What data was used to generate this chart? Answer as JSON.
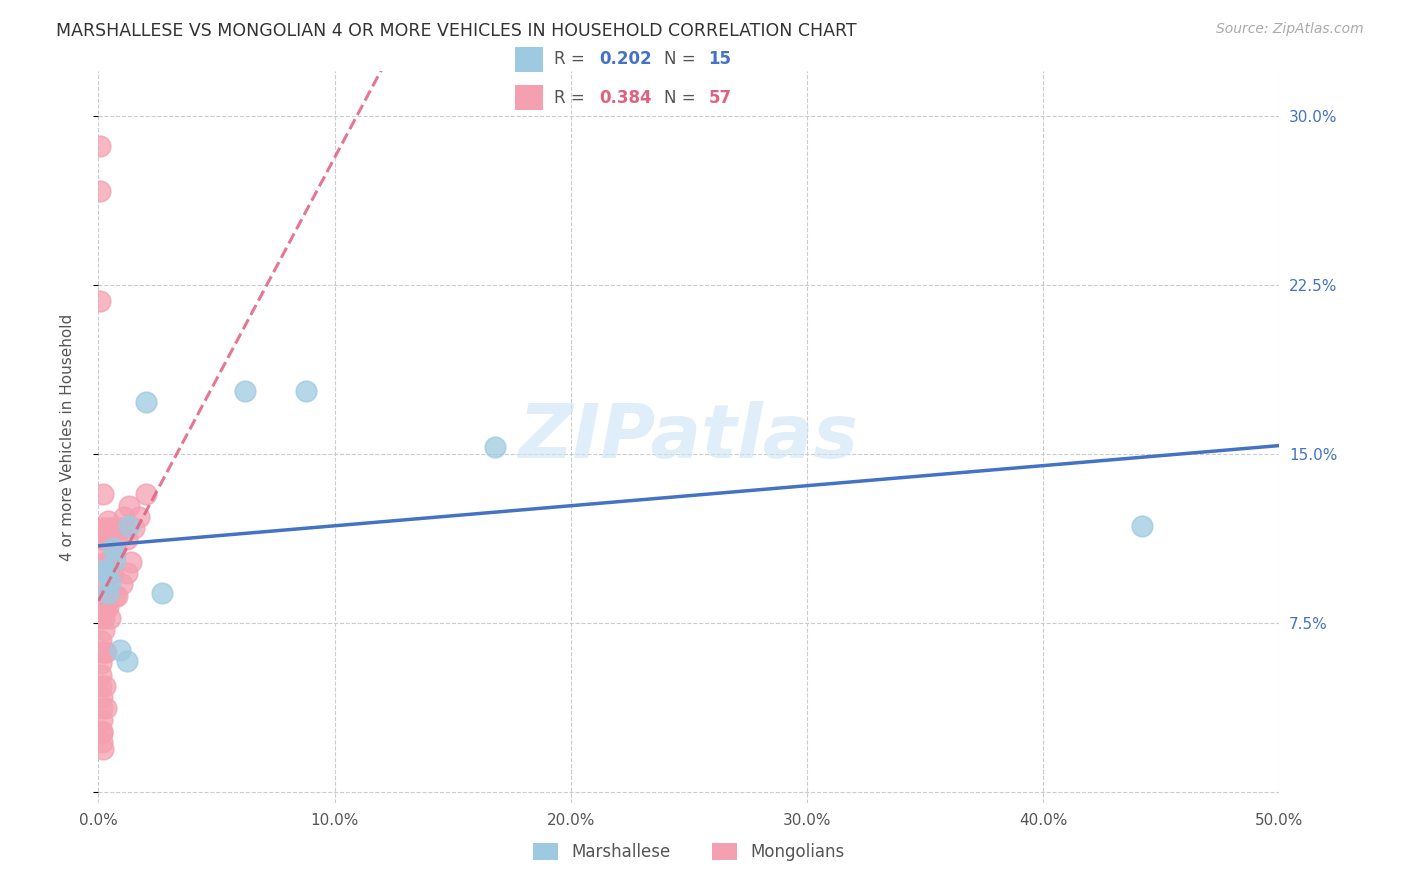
{
  "title": "MARSHALLESE VS MONGOLIAN 4 OR MORE VEHICLES IN HOUSEHOLD CORRELATION CHART",
  "source": "Source: ZipAtlas.com",
  "ylabel": "4 or more Vehicles in Household",
  "xlim": [
    0.0,
    0.5
  ],
  "ylim": [
    -0.005,
    0.32
  ],
  "xticks": [
    0.0,
    0.1,
    0.2,
    0.3,
    0.4,
    0.5
  ],
  "xticklabels": [
    "0.0%",
    "10.0%",
    "20.0%",
    "30.0%",
    "40.0%",
    "50.0%"
  ],
  "yticks": [
    0.0,
    0.075,
    0.15,
    0.225,
    0.3
  ],
  "yticklabels_right": [
    "",
    "7.5%",
    "15.0%",
    "22.5%",
    "30.0%"
  ],
  "grid_color": "#cccccc",
  "marshallese_color": "#9ecae1",
  "mongolian_color": "#f4a0b0",
  "marshallese_R": 0.202,
  "marshallese_N": 15,
  "mongolian_R": 0.384,
  "mongolian_N": 57,
  "marshallese_line_color": "#4472c4",
  "mongolian_line_color": "#e06080",
  "marshallese_x": [
    0.002,
    0.003,
    0.004,
    0.005,
    0.006,
    0.007,
    0.009,
    0.012,
    0.013,
    0.02,
    0.027,
    0.062,
    0.088,
    0.168,
    0.442
  ],
  "marshallese_y": [
    0.098,
    0.098,
    0.088,
    0.093,
    0.108,
    0.103,
    0.063,
    0.058,
    0.118,
    0.173,
    0.088,
    0.178,
    0.178,
    0.153,
    0.118
  ],
  "mongolian_x": [
    0.0008,
    0.0008,
    0.0008,
    0.0009,
    0.001,
    0.001,
    0.001,
    0.001,
    0.001,
    0.001,
    0.0012,
    0.0012,
    0.0013,
    0.0013,
    0.0015,
    0.0015,
    0.0015,
    0.0016,
    0.0016,
    0.0017,
    0.0018,
    0.002,
    0.002,
    0.002,
    0.002,
    0.0022,
    0.0023,
    0.0024,
    0.0025,
    0.0026,
    0.003,
    0.003,
    0.003,
    0.003,
    0.003,
    0.004,
    0.004,
    0.004,
    0.005,
    0.005,
    0.005,
    0.006,
    0.006,
    0.007,
    0.007,
    0.008,
    0.008,
    0.01,
    0.01,
    0.011,
    0.012,
    0.012,
    0.013,
    0.014,
    0.015,
    0.017,
    0.02
  ],
  "mongolian_y": [
    0.287,
    0.267,
    0.218,
    0.112,
    0.108,
    0.092,
    0.087,
    0.082,
    0.077,
    0.067,
    0.062,
    0.057,
    0.052,
    0.047,
    0.042,
    0.037,
    0.032,
    0.027,
    0.026,
    0.022,
    0.019,
    0.132,
    0.117,
    0.112,
    0.087,
    0.082,
    0.077,
    0.072,
    0.062,
    0.047,
    0.037,
    0.117,
    0.102,
    0.082,
    0.062,
    0.12,
    0.102,
    0.082,
    0.117,
    0.097,
    0.077,
    0.117,
    0.097,
    0.107,
    0.087,
    0.112,
    0.087,
    0.117,
    0.092,
    0.122,
    0.112,
    0.097,
    0.127,
    0.102,
    0.117,
    0.122,
    0.132
  ]
}
